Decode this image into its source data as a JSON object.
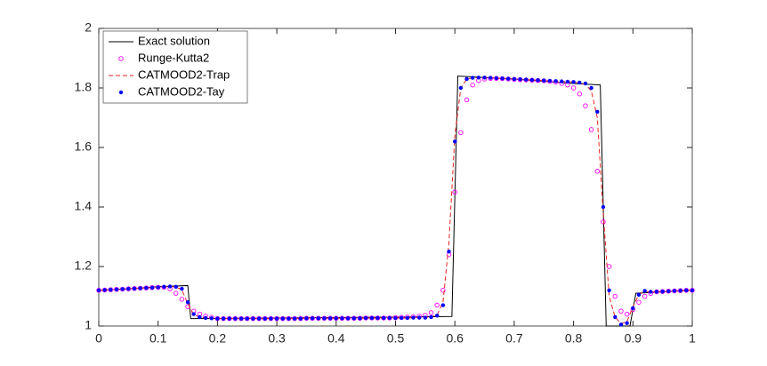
{
  "chart_data": {
    "type": "line",
    "x": [
      0,
      0.01,
      0.02,
      0.03,
      0.04,
      0.05,
      0.06,
      0.07,
      0.08,
      0.09,
      0.1,
      0.11,
      0.12,
      0.13,
      0.14,
      0.15,
      0.16,
      0.17,
      0.18,
      0.19,
      0.2,
      0.21,
      0.22,
      0.23,
      0.24,
      0.25,
      0.26,
      0.27,
      0.28,
      0.29,
      0.3,
      0.31,
      0.32,
      0.33,
      0.34,
      0.35,
      0.36,
      0.37,
      0.38,
      0.39,
      0.4,
      0.41,
      0.42,
      0.43,
      0.44,
      0.45,
      0.46,
      0.47,
      0.48,
      0.49,
      0.5,
      0.51,
      0.52,
      0.53,
      0.54,
      0.55,
      0.56,
      0.57,
      0.58,
      0.59,
      0.6,
      0.61,
      0.62,
      0.63,
      0.64,
      0.65,
      0.66,
      0.67,
      0.68,
      0.69,
      0.7,
      0.71,
      0.72,
      0.73,
      0.74,
      0.75,
      0.76,
      0.77,
      0.78,
      0.79,
      0.8,
      0.81,
      0.82,
      0.83,
      0.84,
      0.85,
      0.86,
      0.87,
      0.88,
      0.89,
      0.9,
      0.91,
      0.92,
      0.93,
      0.94,
      0.95,
      0.96,
      0.97,
      0.98,
      0.99,
      1
    ],
    "series": [
      {
        "name": "Exact solution",
        "color": "#000000",
        "line_style": "solid",
        "marker": null,
        "x": [
          0,
          0.05,
          0.1,
          0.15,
          0.155,
          0.3,
          0.5,
          0.595,
          0.605,
          0.7,
          0.8,
          0.845,
          0.855,
          0.895,
          0.905,
          0.95,
          1
        ],
        "values": [
          1.12,
          1.125,
          1.132,
          1.136,
          1.025,
          1.027,
          1.03,
          1.032,
          1.84,
          1.83,
          1.815,
          1.81,
          1.0,
          1.0,
          1.11,
          1.115,
          1.12
        ]
      },
      {
        "name": "Runge-Kutta2",
        "color": "#ff00ff",
        "line_style": null,
        "marker": "circle",
        "values": [
          1.12,
          1.121,
          1.122,
          1.123,
          1.124,
          1.125,
          1.126,
          1.127,
          1.128,
          1.129,
          1.13,
          1.13,
          1.125,
          1.11,
          1.09,
          1.065,
          1.05,
          1.04,
          1.033,
          1.029,
          1.025,
          1.025,
          1.025,
          1.025,
          1.025,
          1.025,
          1.025,
          1.025,
          1.025,
          1.025,
          1.025,
          1.025,
          1.025,
          1.025,
          1.025,
          1.026,
          1.026,
          1.026,
          1.026,
          1.026,
          1.026,
          1.026,
          1.026,
          1.026,
          1.026,
          1.027,
          1.027,
          1.027,
          1.027,
          1.027,
          1.028,
          1.029,
          1.03,
          1.031,
          1.033,
          1.036,
          1.045,
          1.07,
          1.12,
          1.24,
          1.45,
          1.65,
          1.76,
          1.81,
          1.825,
          1.83,
          1.832,
          1.832,
          1.831,
          1.83,
          1.829,
          1.828,
          1.827,
          1.826,
          1.825,
          1.824,
          1.822,
          1.82,
          1.815,
          1.81,
          1.8,
          1.78,
          1.74,
          1.66,
          1.52,
          1.35,
          1.2,
          1.1,
          1.05,
          1.04,
          1.055,
          1.08,
          1.1,
          1.11,
          1.115,
          1.116,
          1.117,
          1.118,
          1.119,
          1.12,
          1.12
        ]
      },
      {
        "name": "CATMOOD2-Trap",
        "color": "#e8231f",
        "line_style": "dashed",
        "marker": null,
        "values": [
          1.12,
          1.121,
          1.122,
          1.123,
          1.124,
          1.125,
          1.126,
          1.127,
          1.128,
          1.129,
          1.13,
          1.132,
          1.133,
          1.131,
          1.122,
          1.075,
          1.038,
          1.03,
          1.027,
          1.026,
          1.025,
          1.025,
          1.025,
          1.025,
          1.025,
          1.025,
          1.025,
          1.025,
          1.025,
          1.025,
          1.025,
          1.025,
          1.025,
          1.025,
          1.025,
          1.026,
          1.026,
          1.026,
          1.026,
          1.026,
          1.026,
          1.026,
          1.026,
          1.026,
          1.026,
          1.027,
          1.027,
          1.027,
          1.027,
          1.027,
          1.027,
          1.027,
          1.027,
          1.028,
          1.028,
          1.028,
          1.031,
          1.037,
          1.08,
          1.28,
          1.64,
          1.8,
          1.83,
          1.834,
          1.835,
          1.835,
          1.834,
          1.833,
          1.832,
          1.831,
          1.83,
          1.829,
          1.828,
          1.827,
          1.826,
          1.825,
          1.824,
          1.823,
          1.822,
          1.821,
          1.82,
          1.817,
          1.812,
          1.79,
          1.7,
          1.38,
          1.1,
          1.03,
          1.008,
          1.015,
          1.065,
          1.105,
          1.117,
          1.115,
          1.115,
          1.116,
          1.117,
          1.118,
          1.119,
          1.12,
          1.12
        ]
      },
      {
        "name": "CATMOOD2-Tay",
        "color": "#0000ff",
        "line_style": null,
        "marker": "dot",
        "values": [
          1.12,
          1.121,
          1.122,
          1.123,
          1.124,
          1.125,
          1.126,
          1.127,
          1.128,
          1.129,
          1.13,
          1.132,
          1.133,
          1.132,
          1.125,
          1.08,
          1.04,
          1.03,
          1.027,
          1.026,
          1.025,
          1.025,
          1.025,
          1.025,
          1.025,
          1.025,
          1.025,
          1.025,
          1.025,
          1.025,
          1.025,
          1.025,
          1.025,
          1.025,
          1.025,
          1.026,
          1.026,
          1.026,
          1.026,
          1.026,
          1.026,
          1.026,
          1.026,
          1.026,
          1.026,
          1.027,
          1.027,
          1.027,
          1.027,
          1.027,
          1.027,
          1.027,
          1.027,
          1.028,
          1.028,
          1.028,
          1.03,
          1.035,
          1.07,
          1.25,
          1.62,
          1.8,
          1.83,
          1.834,
          1.835,
          1.835,
          1.834,
          1.833,
          1.832,
          1.831,
          1.83,
          1.829,
          1.828,
          1.827,
          1.826,
          1.825,
          1.824,
          1.823,
          1.822,
          1.821,
          1.82,
          1.818,
          1.815,
          1.8,
          1.72,
          1.4,
          1.12,
          1.03,
          1.005,
          1.01,
          1.06,
          1.105,
          1.118,
          1.115,
          1.115,
          1.116,
          1.117,
          1.118,
          1.119,
          1.12,
          1.12
        ]
      }
    ],
    "xlim": [
      0,
      1
    ],
    "xticks": [
      0,
      0.1,
      0.2,
      0.3,
      0.4,
      0.5,
      0.6,
      0.7,
      0.8,
      0.9,
      1
    ],
    "ylim": [
      1,
      2
    ],
    "yticks": [
      1,
      1.2,
      1.4,
      1.6,
      1.8,
      2
    ],
    "grid": false,
    "legend": "upper left"
  }
}
